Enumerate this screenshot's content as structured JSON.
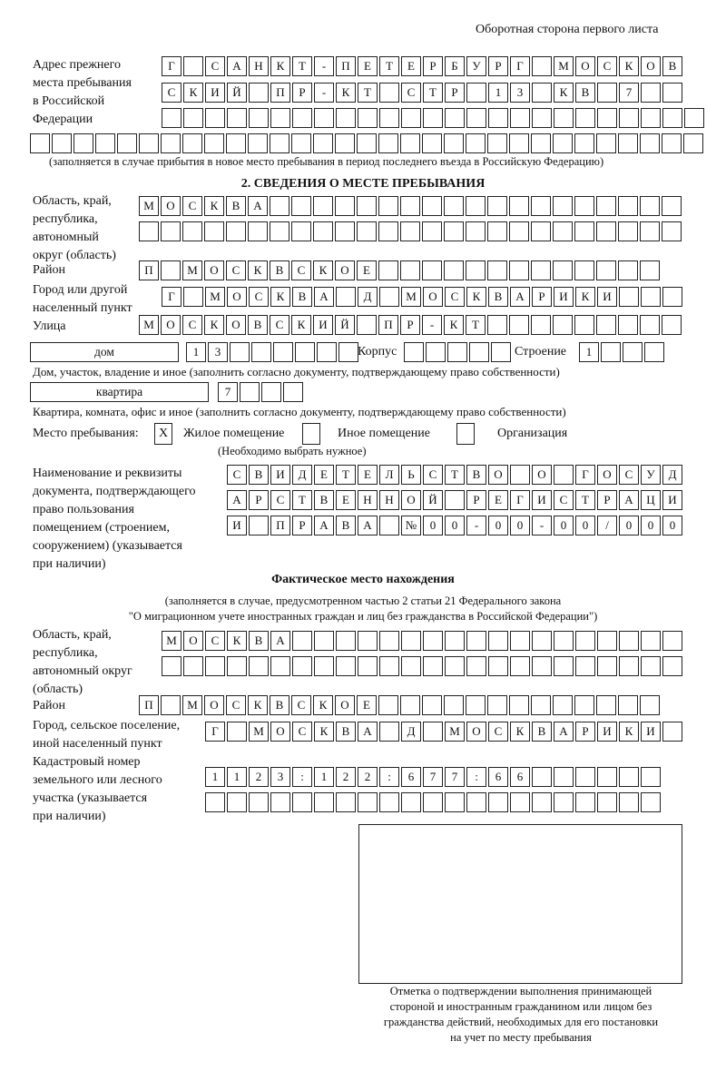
{
  "page_header": "Оборотная сторона первого листа",
  "prev_address": {
    "label": [
      "Адрес прежнего",
      "места пребывания",
      "в Российской",
      "Федерации"
    ],
    "rows": [
      [
        "Г",
        " ",
        "С",
        "А",
        "Н",
        "К",
        "Т",
        "-",
        "П",
        "Е",
        "Т",
        "Е",
        "Р",
        "Б",
        "У",
        "Р",
        "Г",
        " ",
        "М",
        "О",
        "С",
        "К",
        "О",
        "В"
      ],
      [
        "С",
        "К",
        "И",
        "Й",
        " ",
        "П",
        "Р",
        "-",
        "К",
        "Т",
        " ",
        "С",
        "Т",
        "Р",
        " ",
        "1",
        "3",
        " ",
        "К",
        "В",
        " ",
        "7",
        " ",
        " "
      ],
      [
        " ",
        " ",
        " ",
        " ",
        " ",
        " ",
        " ",
        " ",
        " ",
        " ",
        " ",
        " ",
        " ",
        " ",
        " ",
        " ",
        " ",
        " ",
        " ",
        " ",
        " ",
        " ",
        " ",
        " ",
        " "
      ],
      [
        " ",
        " ",
        " ",
        " ",
        " ",
        " ",
        " ",
        " ",
        " ",
        " ",
        " ",
        " ",
        " ",
        " ",
        " ",
        " ",
        " ",
        " ",
        " ",
        " ",
        " ",
        " ",
        " ",
        " ",
        " ",
        " ",
        " ",
        " ",
        " ",
        " ",
        " "
      ]
    ],
    "note": "(заполняется в случае прибытия в новое место пребывания в период последнего въезда в Российскую Федерацию)"
  },
  "section2": {
    "title": "2. СВЕДЕНИЯ О МЕСТЕ ПРЕБЫВАНИЯ",
    "region_label": [
      "Область, край,",
      "республика,",
      "автономный",
      "округ (область)"
    ],
    "region_rows": [
      [
        "М",
        "О",
        "С",
        "К",
        "В",
        "А",
        " ",
        " ",
        " ",
        " ",
        " ",
        " ",
        " ",
        " ",
        " ",
        " ",
        " ",
        " ",
        " ",
        " ",
        " ",
        " ",
        " ",
        " ",
        " "
      ],
      [
        " ",
        " ",
        " ",
        " ",
        " ",
        " ",
        " ",
        " ",
        " ",
        " ",
        " ",
        " ",
        " ",
        " ",
        " ",
        " ",
        " ",
        " ",
        " ",
        " ",
        " ",
        " ",
        " ",
        " ",
        " "
      ]
    ],
    "district_label": "Район",
    "district_row": [
      "П",
      " ",
      "М",
      "О",
      "С",
      "К",
      "В",
      "С",
      "К",
      "О",
      "Е",
      " ",
      " ",
      " ",
      " ",
      " ",
      " ",
      " ",
      " ",
      " ",
      " ",
      " ",
      " ",
      " "
    ],
    "city_label": [
      "Город или другой",
      "населенный пункт"
    ],
    "city_row": [
      "Г",
      " ",
      "М",
      "О",
      "С",
      "К",
      "В",
      "А",
      " ",
      "Д",
      " ",
      "М",
      "О",
      "С",
      "К",
      "В",
      "А",
      "Р",
      "И",
      "К",
      "И",
      " ",
      " ",
      " "
    ],
    "street_label": "Улица",
    "street_row": [
      "М",
      "О",
      "С",
      "К",
      "О",
      "В",
      "С",
      "К",
      "И",
      "Й",
      " ",
      "П",
      "Р",
      "-",
      "К",
      "Т",
      " ",
      " ",
      " ",
      " ",
      " ",
      " ",
      " ",
      " ",
      " "
    ],
    "house_type": "дом",
    "house_row": [
      "1",
      "3",
      " ",
      " ",
      " ",
      " ",
      " ",
      " "
    ],
    "korpus_label": "Корпус",
    "korpus_row": [
      " ",
      " ",
      " ",
      " ",
      " "
    ],
    "building_label": "Строение",
    "building_row": [
      "1",
      " ",
      " ",
      " "
    ],
    "house_note": "Дом, участок, владение и иное (заполнить согласно документу, подтверждающему право собственности)",
    "apt_type": "квартира",
    "apt_row": [
      "7",
      " ",
      " ",
      " "
    ],
    "apt_note": "Квартира, комната, офис и иное (заполнить согласно документу, подтверждающему право собственности)",
    "stay_label": "Место пребывания:",
    "stay_options": [
      {
        "label": "Жилое помещение",
        "checked": true,
        "mark": "X"
      },
      {
        "label": "Иное помещение",
        "checked": false,
        "mark": ""
      },
      {
        "label": "Организация",
        "checked": false,
        "mark": ""
      }
    ],
    "stay_note": "(Необходимо выбрать нужное)",
    "doc_label": [
      "Наименование и реквизиты",
      "документа, подтверждающего",
      "право пользования",
      "помещением (строением,",
      "сооружением) (указывается",
      "при наличии)"
    ],
    "doc_rows": [
      [
        "С",
        "В",
        "И",
        "Д",
        "Е",
        "Т",
        "Е",
        "Л",
        "Ь",
        "С",
        "Т",
        "В",
        "О",
        " ",
        "О",
        " ",
        "Г",
        "О",
        "С",
        "У",
        "Д"
      ],
      [
        "А",
        "Р",
        "С",
        "Т",
        "В",
        "Е",
        "Н",
        "Н",
        "О",
        "Й",
        " ",
        "Р",
        "Е",
        "Г",
        "И",
        "С",
        "Т",
        "Р",
        "А",
        "Ц",
        "И"
      ],
      [
        "И",
        " ",
        "П",
        "Р",
        "А",
        "В",
        "А",
        " ",
        "№",
        "0",
        "0",
        "-",
        "0",
        "0",
        "-",
        "0",
        "0",
        "/",
        "0",
        "0",
        "0"
      ]
    ]
  },
  "actual": {
    "title": "Фактическое место нахождения",
    "note": [
      "(заполняется в случае, предусмотренном частью 2 статьи 21 Федерального закона",
      "\"О миграционном учете иностранных граждан и лиц без гражданства в Российской Федерации\")"
    ],
    "region_label": [
      "Область, край,",
      "республика,",
      "автономный округ",
      "(область)"
    ],
    "region_rows": [
      [
        "М",
        "О",
        "С",
        "К",
        "В",
        "А",
        " ",
        " ",
        " ",
        " ",
        " ",
        " ",
        " ",
        " ",
        " ",
        " ",
        " ",
        " ",
        " ",
        " ",
        " ",
        " ",
        " ",
        " "
      ],
      [
        " ",
        " ",
        " ",
        " ",
        " ",
        " ",
        " ",
        " ",
        " ",
        " ",
        " ",
        " ",
        " ",
        " ",
        " ",
        " ",
        " ",
        " ",
        " ",
        " ",
        " ",
        " ",
        " ",
        " "
      ]
    ],
    "district_label": "Район",
    "district_row": [
      "П",
      " ",
      "М",
      "О",
      "С",
      "К",
      "В",
      "С",
      "К",
      "О",
      "Е",
      " ",
      " ",
      " ",
      " ",
      " ",
      " ",
      " ",
      " ",
      " ",
      " ",
      " ",
      " ",
      " "
    ],
    "city_label": [
      "Город, сельское поселение,",
      "иной населенный пункт"
    ],
    "city_row": [
      "Г",
      " ",
      "М",
      "О",
      "С",
      "К",
      "В",
      "А",
      " ",
      "Д",
      " ",
      "М",
      "О",
      "С",
      "К",
      "В",
      "А",
      "Р",
      "И",
      "К",
      "И",
      " "
    ],
    "cadastre_label": [
      "Кадастровый номер",
      "земельного или лесного",
      "участка (указывается",
      "при наличии)"
    ],
    "cadastre_rows": [
      [
        "1",
        "1",
        "2",
        "3",
        ":",
        "1",
        "2",
        "2",
        ":",
        "6",
        "7",
        "7",
        ":",
        "6",
        "6",
        " ",
        " ",
        " ",
        " ",
        " ",
        " "
      ],
      [
        " ",
        " ",
        " ",
        " ",
        " ",
        " ",
        " ",
        " ",
        " ",
        " ",
        " ",
        " ",
        " ",
        " ",
        " ",
        " ",
        " ",
        " ",
        " ",
        " ",
        " "
      ]
    ]
  },
  "stamp_caption": [
    "Отметка о подтверждении выполнения принимающей",
    "стороной и иностранным гражданином или лицом без",
    "гражданства действий, необходимых для его постановки",
    "на учет по месту пребывания"
  ]
}
